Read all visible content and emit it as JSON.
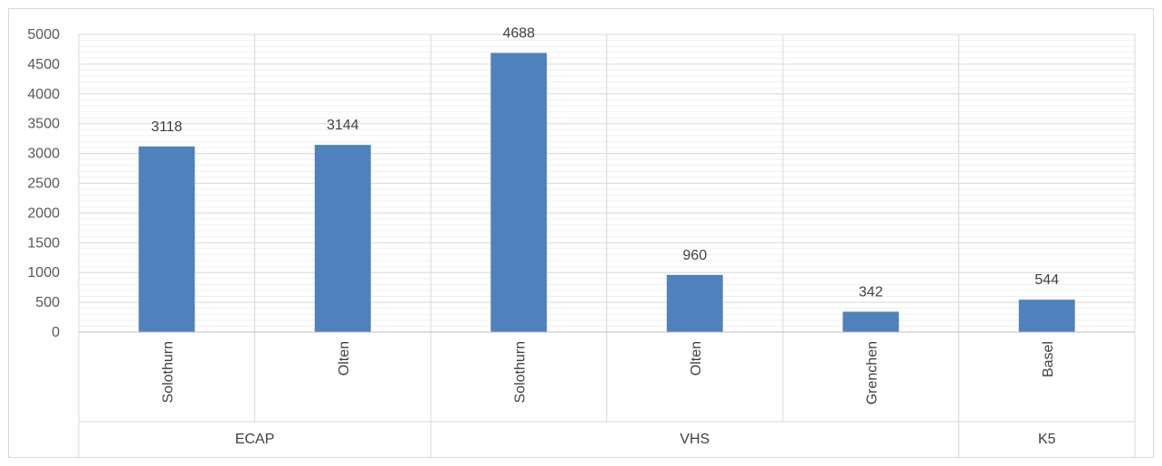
{
  "chart_data": {
    "type": "bar",
    "title": "",
    "xlabel": "",
    "ylabel": "",
    "ylim": [
      0,
      5000
    ],
    "yticks": [
      0,
      500,
      1000,
      1500,
      2000,
      2500,
      3000,
      3500,
      4000,
      4500,
      5000
    ],
    "minor_step": 100,
    "grid": true,
    "legend": "none",
    "bar_color": "#4f81bd",
    "groups": [
      {
        "label": "ECAP",
        "categories": [
          "Solothurn",
          "Olten"
        ],
        "values": [
          3118,
          3144
        ]
      },
      {
        "label": "VHS",
        "categories": [
          "Solothurn",
          "Olten",
          "Grenchen"
        ],
        "values": [
          4688,
          960,
          342
        ]
      },
      {
        "label": "K5",
        "categories": [
          "Basel"
        ],
        "values": [
          544
        ]
      }
    ],
    "data_labels": [
      "3118",
      "3144",
      "4688",
      "960",
      "342",
      "544"
    ]
  }
}
